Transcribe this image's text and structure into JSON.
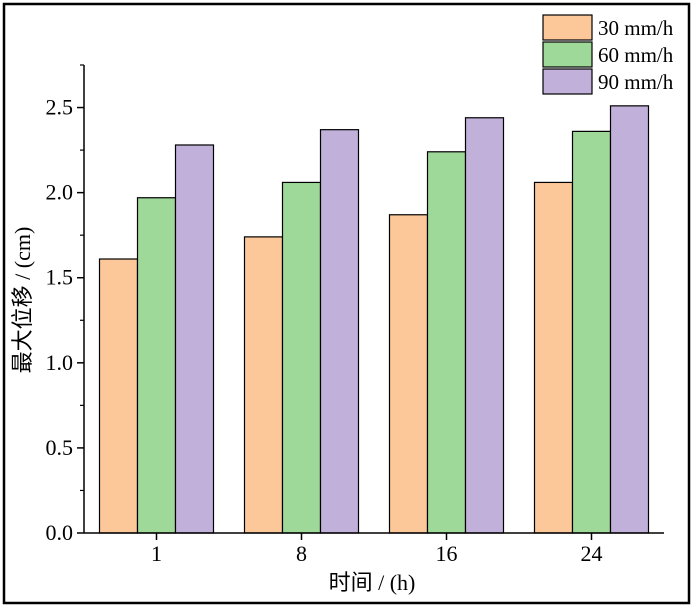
{
  "chart_data": {
    "type": "bar",
    "xlabel": "时间 / (h)",
    "ylabel": "最大位移 / (cm)",
    "categories": [
      "1",
      "8",
      "16",
      "24"
    ],
    "ylim": [
      0,
      2.75
    ],
    "yticks": [
      "0.0",
      "0.5",
      "1.0",
      "1.5",
      "2.0",
      "2.5"
    ],
    "series": [
      {
        "name": "30 mm/h",
        "color": "#fcc89a",
        "values": [
          1.61,
          1.74,
          1.87,
          2.06
        ]
      },
      {
        "name": "60 mm/h",
        "color": "#9fd99a",
        "values": [
          1.97,
          2.06,
          2.24,
          2.36
        ]
      },
      {
        "name": "90 mm/h",
        "color": "#c1b0d9",
        "values": [
          2.28,
          2.37,
          2.44,
          2.51
        ]
      }
    ],
    "legend_position": "top-right",
    "grid": false
  }
}
